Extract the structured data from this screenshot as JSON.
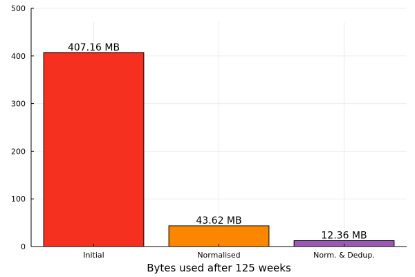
{
  "chart_data": {
    "type": "bar",
    "categories": [
      "Initial",
      "Normalised",
      "Norm. & Dedup."
    ],
    "values": [
      407.16,
      43.62,
      12.36
    ],
    "data_labels": [
      "407.16 MB",
      "43.62 MB",
      "12.36 MB"
    ],
    "colors": [
      "#f5301e",
      "#fb8700",
      "#9b59b6"
    ],
    "xlabel": "Bytes used after 125 weeks",
    "ylabel": "",
    "ylim": [
      0,
      500
    ],
    "yticks": [
      "0",
      "100",
      "200",
      "300",
      "400",
      "500"
    ],
    "grid": true,
    "legend": "none"
  }
}
